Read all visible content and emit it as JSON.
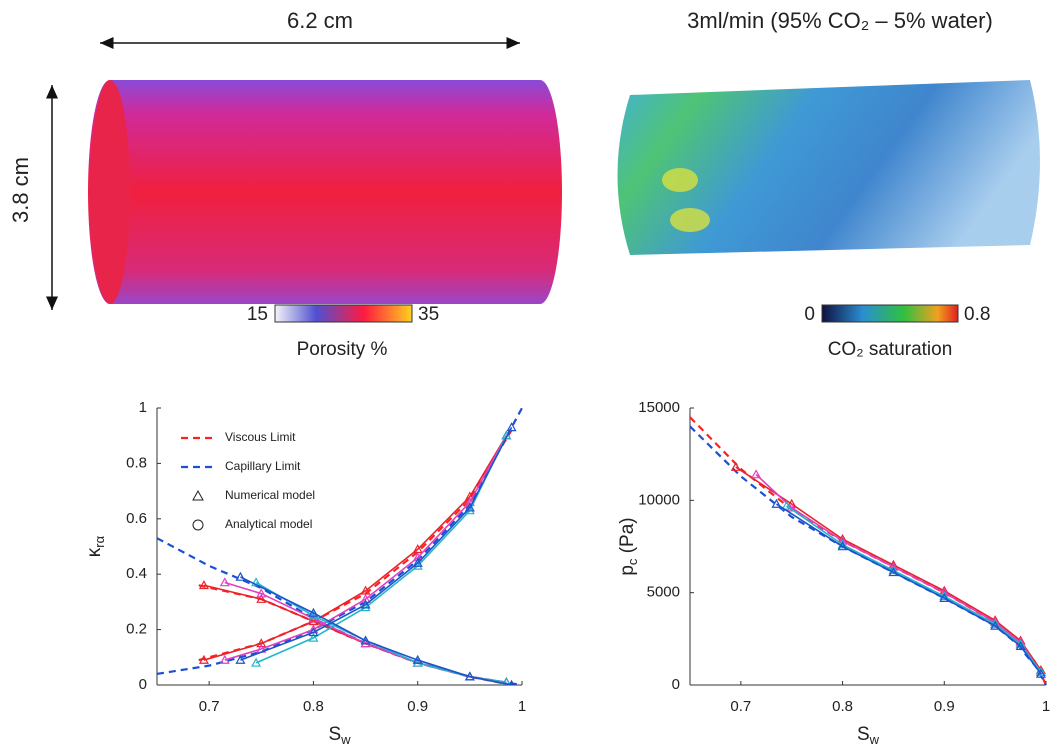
{
  "panels": {
    "porosity": {
      "width_label": "6.2 cm",
      "height_label": "3.8 cm",
      "colorbar_min": 15,
      "colorbar_max": 35,
      "colorbar_label": "Porosity %"
    },
    "saturation": {
      "title": "3ml/min (95% CO₂ – 5% water)",
      "colorbar_min": 0,
      "colorbar_max": 0.8,
      "colorbar_label": "CO₂ saturation"
    }
  },
  "chart_data": [
    {
      "type": "line",
      "x_label": {
        "main": "S",
        "sub": "w"
      },
      "y_label": {
        "main": "κ",
        "sub": "rα"
      },
      "xlim": [
        0.65,
        1
      ],
      "ylim": [
        0,
        1
      ],
      "xticks": [
        0.7,
        0.8,
        0.9,
        1
      ],
      "yticks": [
        0,
        0.2,
        0.4,
        0.6,
        0.8,
        1
      ],
      "legend": [
        {
          "label": "Viscous Limit",
          "color": "#ff2020",
          "style": "dashed"
        },
        {
          "label": "Capillary Limit",
          "color": "#1a4fd6",
          "style": "dashed"
        },
        {
          "label": "Numerical model",
          "marker": "triangle"
        },
        {
          "label": "Analytical model",
          "marker": "circle"
        }
      ],
      "series": [
        {
          "name": "Viscous Limit",
          "color": "#ff2020",
          "style": "dashed",
          "marker": "none",
          "x": [
            0.69,
            0.75,
            0.8,
            0.85,
            0.9,
            0.95,
            0.99
          ],
          "values": [
            0.09,
            0.15,
            0.23,
            0.33,
            0.48,
            0.67,
            0.92
          ]
        },
        {
          "color": "#ff2020",
          "style": "dashed",
          "marker": "none",
          "x": [
            0.69,
            0.75,
            0.8,
            0.85,
            0.9,
            0.95,
            0.99
          ],
          "values": [
            0.36,
            0.31,
            0.23,
            0.15,
            0.08,
            0.03,
            0
          ]
        },
        {
          "name": "Capillary Limit",
          "color": "#1a4fd6",
          "style": "dashed",
          "marker": "none",
          "x": [
            0.65,
            0.7,
            0.75,
            0.8,
            0.85,
            0.9,
            0.95,
            1
          ],
          "values": [
            0.04,
            0.07,
            0.12,
            0.2,
            0.3,
            0.45,
            0.65,
            1
          ]
        },
        {
          "color": "#1a4fd6",
          "style": "dashed",
          "marker": "none",
          "x": [
            0.65,
            0.7,
            0.75,
            0.8,
            0.85,
            0.9,
            0.95,
            1
          ],
          "values": [
            0.53,
            0.43,
            0.35,
            0.24,
            0.15,
            0.08,
            0.03,
            0
          ]
        },
        {
          "color": "#e8242b",
          "style": "solid",
          "marker": "triangle",
          "x": [
            0.695,
            0.75,
            0.8,
            0.85,
            0.9,
            0.95,
            0.985
          ],
          "values": [
            0.09,
            0.15,
            0.23,
            0.34,
            0.49,
            0.68,
            0.9
          ]
        },
        {
          "color": "#e8242b",
          "style": "solid",
          "marker": "triangle",
          "x": [
            0.695,
            0.75,
            0.8,
            0.85,
            0.9,
            0.95,
            0.985
          ],
          "values": [
            0.36,
            0.31,
            0.23,
            0.15,
            0.08,
            0.03,
            0.01
          ]
        },
        {
          "color": "#e040c0",
          "style": "solid",
          "marker": "triangle",
          "x": [
            0.715,
            0.75,
            0.8,
            0.85,
            0.9,
            0.95,
            0.985
          ],
          "values": [
            0.09,
            0.13,
            0.2,
            0.31,
            0.46,
            0.66,
            0.9
          ]
        },
        {
          "color": "#e040c0",
          "style": "solid",
          "marker": "triangle",
          "x": [
            0.715,
            0.75,
            0.8,
            0.85,
            0.9,
            0.95,
            0.985
          ],
          "values": [
            0.37,
            0.33,
            0.24,
            0.15,
            0.08,
            0.03,
            0.01
          ]
        },
        {
          "color": "#22b5cc",
          "style": "solid",
          "marker": "triangle",
          "x": [
            0.745,
            0.8,
            0.85,
            0.9,
            0.95,
            0.985
          ],
          "values": [
            0.08,
            0.17,
            0.28,
            0.43,
            0.63,
            0.9
          ]
        },
        {
          "color": "#22b5cc",
          "style": "solid",
          "marker": "triangle",
          "x": [
            0.745,
            0.8,
            0.85,
            0.9,
            0.95,
            0.985
          ],
          "values": [
            0.37,
            0.25,
            0.16,
            0.08,
            0.03,
            0.01
          ]
        },
        {
          "color": "#1c54c9",
          "style": "solid",
          "marker": "triangle",
          "x": [
            0.73,
            0.8,
            0.85,
            0.9,
            0.95,
            0.99
          ],
          "values": [
            0.09,
            0.19,
            0.29,
            0.44,
            0.64,
            0.93
          ]
        },
        {
          "color": "#1c54c9",
          "style": "solid",
          "marker": "triangle",
          "x": [
            0.73,
            0.8,
            0.85,
            0.9,
            0.95,
            0.99
          ],
          "values": [
            0.39,
            0.26,
            0.16,
            0.09,
            0.03,
            0
          ]
        }
      ]
    },
    {
      "type": "line",
      "x_label": {
        "main": "S",
        "sub": "w"
      },
      "y_label": {
        "main": "p",
        "sub": "c",
        "unit": " (Pa)"
      },
      "xlim": [
        0.65,
        1
      ],
      "ylim": [
        0,
        15000
      ],
      "xticks": [
        0.7,
        0.8,
        0.9,
        1
      ],
      "yticks": [
        0,
        5000,
        10000,
        15000
      ],
      "series": [
        {
          "color": "#ff2020",
          "style": "dashed",
          "marker": "none",
          "x": [
            0.65,
            0.7,
            0.75,
            0.8,
            0.85,
            0.9,
            0.95,
            0.97,
            0.99,
            1
          ],
          "values": [
            14500,
            11700,
            9500,
            7800,
            6400,
            5000,
            3400,
            2500,
            1200,
            0
          ]
        },
        {
          "color": "#1a4fd6",
          "style": "dashed",
          "marker": "none",
          "x": [
            0.65,
            0.7,
            0.75,
            0.8,
            0.85,
            0.9,
            0.95,
            0.97,
            0.99,
            1
          ],
          "values": [
            14000,
            11300,
            9100,
            7500,
            6100,
            4700,
            3200,
            2300,
            1000,
            0
          ]
        },
        {
          "color": "#e8242b",
          "style": "solid",
          "marker": "triangle",
          "x": [
            0.695,
            0.75,
            0.8,
            0.85,
            0.9,
            0.95,
            0.975,
            0.995
          ],
          "values": [
            11800,
            9800,
            7900,
            6500,
            5100,
            3500,
            2400,
            800
          ]
        },
        {
          "color": "#e040c0",
          "style": "solid",
          "marker": "triangle",
          "x": [
            0.715,
            0.75,
            0.8,
            0.85,
            0.9,
            0.95,
            0.975,
            0.995
          ],
          "values": [
            11400,
            9600,
            7800,
            6400,
            5000,
            3400,
            2300,
            700
          ]
        },
        {
          "color": "#22b5cc",
          "style": "solid",
          "marker": "triangle",
          "x": [
            0.745,
            0.8,
            0.85,
            0.9,
            0.95,
            0.975,
            0.995
          ],
          "values": [
            9700,
            7600,
            6200,
            4800,
            3300,
            2200,
            700
          ]
        },
        {
          "color": "#1c54c9",
          "style": "solid",
          "marker": "triangle",
          "x": [
            0.735,
            0.8,
            0.85,
            0.9,
            0.95,
            0.975,
            0.995
          ],
          "values": [
            9800,
            7500,
            6100,
            4700,
            3200,
            2100,
            600
          ]
        }
      ]
    }
  ]
}
